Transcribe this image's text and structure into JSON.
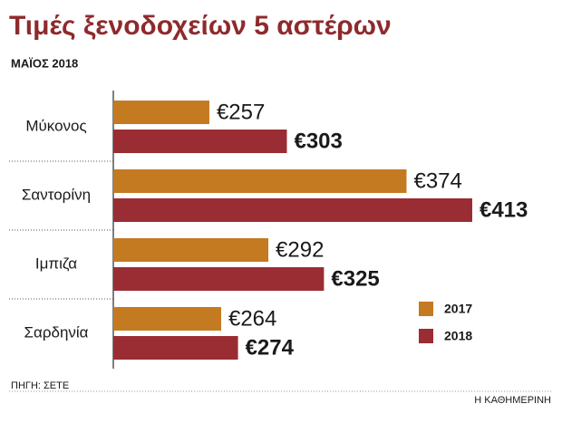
{
  "chart_data": {
    "type": "bar",
    "orientation": "horizontal",
    "title": "Τιμές ξενοδοχείων 5 αστέρων",
    "subtitle": "ΜΑΪΟΣ 2018",
    "source": "ΠΗΓΗ: ΣΕΤΕ",
    "credit": "Η ΚΑΘΗΜΕΡΙΝΗ",
    "categories": [
      "Μύκονος",
      "Σαντορίνη",
      "Ιμπιζα",
      "Σαρδηνία"
    ],
    "xlim": [
      200,
      420
    ],
    "legend": "right",
    "series": [
      {
        "name": "2017",
        "color": "#c47a20",
        "values": [
          257,
          374,
          292,
          264
        ],
        "value_labels": [
          "€257",
          "€374",
          "€292",
          "€264"
        ]
      },
      {
        "name": "2018",
        "color": "#9a2d33",
        "values": [
          303,
          413,
          325,
          274
        ],
        "value_labels": [
          "€303",
          "€413",
          "€325",
          "€274"
        ]
      }
    ]
  }
}
